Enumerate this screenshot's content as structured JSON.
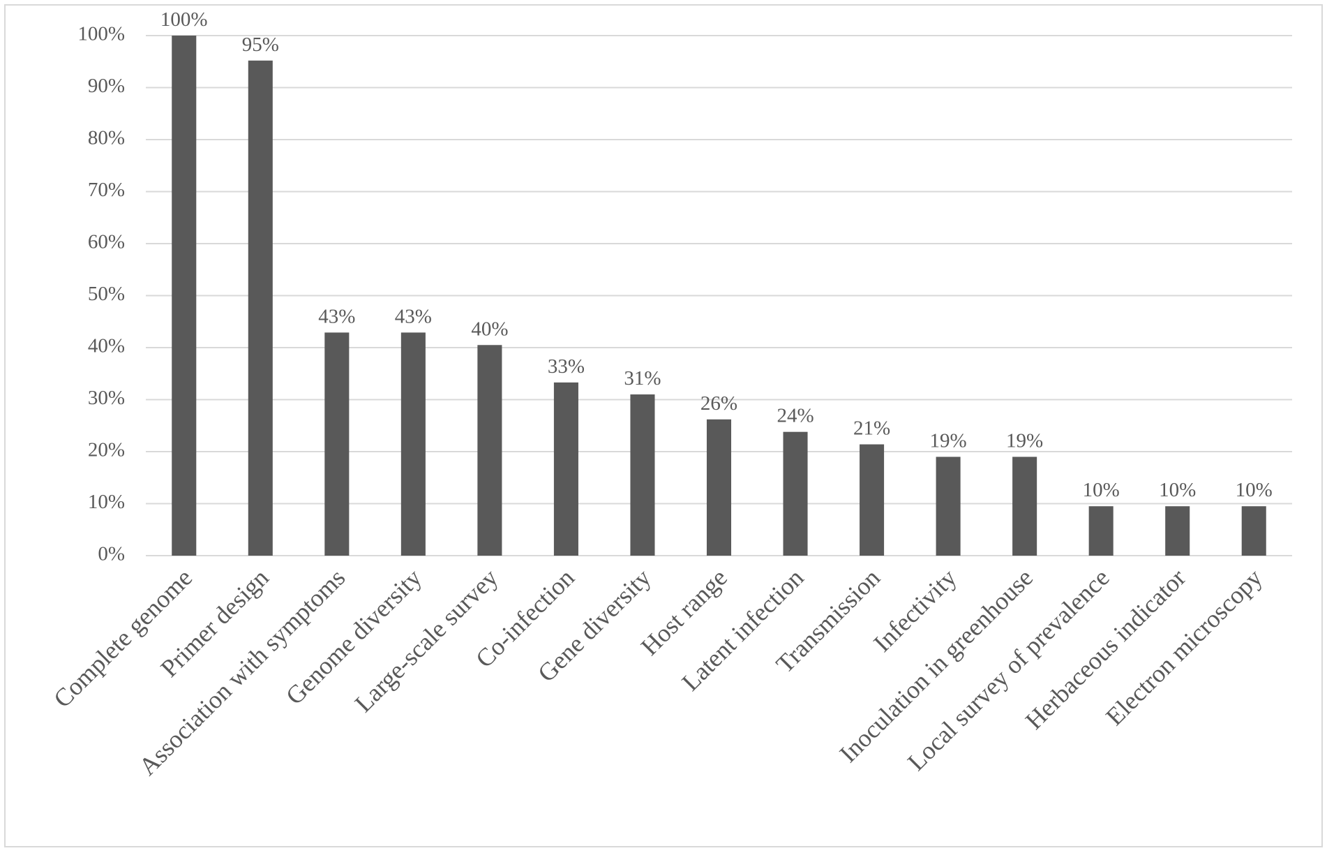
{
  "chart_data": {
    "type": "bar",
    "categories": [
      "Complete genome",
      "Primer design",
      "Association with symptoms",
      "Genome diversity",
      "Large-scale survey",
      "Co-infection",
      "Gene diversity",
      "Host range",
      "Latent infection",
      "Transmission",
      "Infectivity",
      "Inoculation in greenhouse",
      "Local survey of prevalence",
      "Herbaceous indicator",
      "Electron microscopy"
    ],
    "values": [
      100,
      95.2,
      42.9,
      42.9,
      40.5,
      33.3,
      31.0,
      26.2,
      23.8,
      21.4,
      19.0,
      19.0,
      9.5,
      9.5,
      9.5
    ],
    "value_labels": [
      "100%",
      "95%",
      "43%",
      "43%",
      "40%",
      "33%",
      "31%",
      "26%",
      "24%",
      "21%",
      "19%",
      "19%",
      "10%",
      "10%",
      "10%"
    ],
    "color": "#595959",
    "ylim": [
      0,
      100
    ],
    "yticks": [
      {
        "value": 0,
        "label": "0%"
      },
      {
        "value": 10,
        "label": "10%"
      },
      {
        "value": 20,
        "label": "20%"
      },
      {
        "value": 30,
        "label": "30%"
      },
      {
        "value": 40,
        "label": "40%"
      },
      {
        "value": 50,
        "label": "50%"
      },
      {
        "value": 60,
        "label": "60%"
      },
      {
        "value": 70,
        "label": "70%"
      },
      {
        "value": 80,
        "label": "80%"
      },
      {
        "value": 90,
        "label": "90%"
      },
      {
        "value": 100,
        "label": "100%"
      }
    ],
    "grid": true
  }
}
